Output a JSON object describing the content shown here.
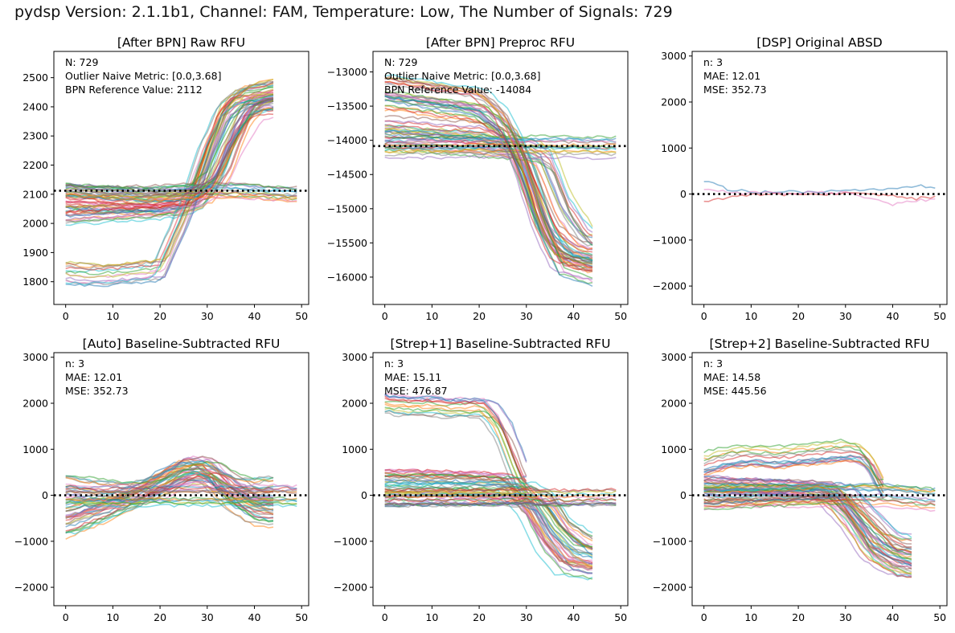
{
  "suptitle": "pydsp Version: 2.1.1b1, Channel: FAM, Temperature: Low, The Number of Signals: 729",
  "series_colors": [
    "#1f77b4",
    "#ff7f0e",
    "#2ca02c",
    "#d62728",
    "#9467bd",
    "#8c564b",
    "#e377c2",
    "#7f7f7f",
    "#bcbd22",
    "#17becf"
  ],
  "chart_data": [
    {
      "type": "line",
      "title": "[After BPN] Raw RFU",
      "annotations": [
        "N: 729",
        "Outlier Naive Metric: [0.0,3.68]",
        "BPN Reference Value: 2112"
      ],
      "xlim": [
        -2.5,
        51.5
      ],
      "ylim": [
        1722,
        2590
      ],
      "xticks": [
        0,
        10,
        20,
        30,
        40,
        50
      ],
      "yticks": [
        1800,
        1900,
        2000,
        2100,
        2200,
        2300,
        2400,
        2500
      ],
      "reference_line": 2112,
      "grid": false,
      "num_series": 729,
      "approx_series": [
        {
          "x": [
            0,
            10,
            20,
            25,
            28,
            30,
            33,
            36,
            40,
            44
          ],
          "y": [
            2070,
            2065,
            2060,
            2080,
            2140,
            2240,
            2380,
            2430,
            2440,
            2450
          ]
        },
        {
          "x": [
            0,
            10,
            20,
            26,
            30,
            34,
            38,
            41,
            44
          ],
          "y": [
            2020,
            2030,
            2040,
            2050,
            2080,
            2180,
            2350,
            2400,
            2410
          ]
        },
        {
          "x": [
            0,
            5,
            10,
            20,
            23,
            26,
            30,
            34,
            38,
            44
          ],
          "y": [
            1830,
            1820,
            1825,
            1840,
            1950,
            2060,
            2250,
            2390,
            2440,
            2460
          ]
        },
        {
          "x": [
            0,
            5,
            10,
            15,
            20,
            25,
            30,
            35,
            40,
            44,
            49
          ],
          "y": [
            2120,
            2112,
            2110,
            2108,
            2110,
            2115,
            2118,
            2120,
            2115,
            2110,
            2105
          ]
        },
        {
          "x": [
            0,
            10,
            20,
            28,
            32,
            36,
            40,
            44
          ],
          "y": [
            2100,
            2090,
            2080,
            2090,
            2140,
            2280,
            2380,
            2400
          ]
        }
      ]
    },
    {
      "type": "line",
      "title": "[After BPN] Preproc RFU",
      "annotations": [
        "N: 729",
        "Outlier Naive Metric: [0.0,3.68]",
        "BPN Reference Value: -14084"
      ],
      "xlim": [
        -2.5,
        51.5
      ],
      "ylim": [
        -16400,
        -12700
      ],
      "xticks": [
        0,
        10,
        20,
        30,
        40,
        50
      ],
      "yticks": [
        -13000,
        -13500,
        -14000,
        -14500,
        -15000,
        -15500,
        -16000
      ],
      "reference_line": -14084,
      "grid": false,
      "num_series": 729,
      "approx_series": [
        {
          "x": [
            0,
            10,
            20,
            26,
            30,
            34,
            38,
            44
          ],
          "y": [
            -13400,
            -13500,
            -13600,
            -13900,
            -14400,
            -15300,
            -15700,
            -15800
          ]
        },
        {
          "x": [
            0,
            10,
            20,
            27,
            31,
            35,
            39,
            44
          ],
          "y": [
            -13800,
            -13850,
            -13900,
            -14100,
            -14800,
            -15400,
            -15600,
            -15700
          ]
        },
        {
          "x": [
            0,
            10,
            20,
            30,
            34,
            38,
            42,
            44
          ],
          "y": [
            -14000,
            -14050,
            -14100,
            -14150,
            -14300,
            -15000,
            -15400,
            -15500
          ]
        },
        {
          "x": [
            0,
            10,
            20,
            30,
            40,
            49
          ],
          "y": [
            -14100,
            -14090,
            -14080,
            -14085,
            -14090,
            -14100
          ]
        },
        {
          "x": [
            0,
            10,
            20,
            25,
            29,
            33,
            37,
            44
          ],
          "y": [
            -13200,
            -13300,
            -13400,
            -13700,
            -14300,
            -15200,
            -15800,
            -15950
          ]
        }
      ]
    },
    {
      "type": "line",
      "title": "[DSP] Original ABSD",
      "annotations": [
        "n: 3",
        "MAE: 12.01",
        "MSE: 352.73"
      ],
      "xlim": [
        -2.5,
        51.5
      ],
      "ylim": [
        -2400,
        3100
      ],
      "xticks": [
        0,
        10,
        20,
        30,
        40,
        50
      ],
      "yticks": [
        -2000,
        -1000,
        0,
        1000,
        2000,
        3000
      ],
      "reference_line": 0,
      "grid": false,
      "num_series": 3,
      "approx_series": [
        {
          "x": [
            0,
            5,
            10,
            20,
            30,
            35,
            40,
            45,
            49
          ],
          "y": [
            300,
            100,
            50,
            40,
            60,
            80,
            120,
            180,
            150
          ]
        },
        {
          "x": [
            0,
            5,
            10,
            20,
            30,
            40,
            45,
            49
          ],
          "y": [
            -150,
            -80,
            -20,
            0,
            10,
            -50,
            -100,
            -60
          ]
        },
        {
          "x": [
            0,
            5,
            10,
            20,
            30,
            40,
            45,
            49
          ],
          "y": [
            100,
            40,
            20,
            30,
            20,
            -220,
            -150,
            -100
          ]
        }
      ]
    },
    {
      "type": "line",
      "title": "[Auto] Baseline-Subtracted RFU",
      "annotations": [
        "n: 3",
        "MAE: 12.01",
        "MSE: 352.73"
      ],
      "xlim": [
        -2.5,
        51.5
      ],
      "ylim": [
        -2400,
        3100
      ],
      "xticks": [
        0,
        10,
        20,
        30,
        40,
        50
      ],
      "yticks": [
        -2000,
        -1000,
        0,
        1000,
        2000,
        3000
      ],
      "reference_line": 0,
      "grid": false,
      "num_series": 729,
      "approx_series": [
        {
          "x": [
            0,
            5,
            10,
            15,
            20,
            25,
            30,
            35,
            40,
            44
          ],
          "y": [
            -700,
            -500,
            -300,
            -50,
            300,
            600,
            500,
            -100,
            -400,
            -450
          ]
        },
        {
          "x": [
            0,
            5,
            10,
            15,
            20,
            25,
            30,
            35,
            40,
            44
          ],
          "y": [
            -400,
            -250,
            -150,
            0,
            200,
            500,
            600,
            300,
            -100,
            -200
          ]
        },
        {
          "x": [
            0,
            5,
            10,
            15,
            20,
            25,
            30,
            35,
            40,
            44
          ],
          "y": [
            200,
            100,
            50,
            30,
            150,
            400,
            500,
            200,
            100,
            150
          ]
        },
        {
          "x": [
            0,
            10,
            20,
            30,
            40,
            49
          ],
          "y": [
            0,
            0,
            10,
            0,
            10,
            0
          ]
        }
      ]
    },
    {
      "type": "line",
      "title": "[Strep+1] Baseline-Subtracted RFU",
      "annotations": [
        "n: 3",
        "MAE: 15.11",
        "MSE: 476.87"
      ],
      "xlim": [
        -2.5,
        51.5
      ],
      "ylim": [
        -2400,
        3100
      ],
      "xticks": [
        0,
        10,
        20,
        30,
        40,
        50
      ],
      "yticks": [
        -2000,
        -1000,
        0,
        1000,
        2000,
        3000
      ],
      "reference_line": 0,
      "grid": false,
      "num_series": 729,
      "approx_series": [
        {
          "x": [
            0,
            5,
            10,
            15,
            20,
            22,
            25,
            28,
            30
          ],
          "y": [
            2020,
            1950,
            1960,
            1900,
            1920,
            1880,
            1500,
            700,
            200
          ]
        },
        {
          "x": [
            0,
            10,
            20,
            26,
            30,
            34,
            38,
            44
          ],
          "y": [
            400,
            380,
            350,
            300,
            -200,
            -1000,
            -1500,
            -1600
          ]
        },
        {
          "x": [
            0,
            10,
            20,
            28,
            32,
            36,
            40,
            44
          ],
          "y": [
            200,
            200,
            180,
            150,
            -300,
            -900,
            -1300,
            -1400
          ]
        },
        {
          "x": [
            0,
            10,
            20,
            30,
            34,
            38,
            42,
            44
          ],
          "y": [
            0,
            20,
            40,
            60,
            -100,
            -700,
            -1000,
            -1100
          ]
        },
        {
          "x": [
            0,
            10,
            20,
            30,
            40,
            49
          ],
          "y": [
            0,
            10,
            0,
            10,
            0,
            20
          ]
        }
      ]
    },
    {
      "type": "line",
      "title": "[Strep+2] Baseline-Subtracted RFU",
      "annotations": [
        "n: 3",
        "MAE: 14.58",
        "MSE: 445.56"
      ],
      "xlim": [
        -2.5,
        51.5
      ],
      "ylim": [
        -2400,
        3100
      ],
      "xticks": [
        0,
        10,
        20,
        30,
        40,
        50
      ],
      "yticks": [
        -2000,
        -1000,
        0,
        1000,
        2000,
        3000
      ],
      "reference_line": 0,
      "grid": false,
      "num_series": 729,
      "approx_series": [
        {
          "x": [
            0,
            5,
            10,
            15,
            20,
            25,
            30,
            33,
            35,
            38
          ],
          "y": [
            650,
            800,
            850,
            800,
            850,
            900,
            950,
            900,
            700,
            100
          ]
        },
        {
          "x": [
            0,
            10,
            20,
            25,
            30,
            35,
            40,
            44
          ],
          "y": [
            300,
            250,
            200,
            100,
            -400,
            -1200,
            -1500,
            -1600
          ]
        },
        {
          "x": [
            0,
            10,
            20,
            27,
            31,
            35,
            40,
            44
          ],
          "y": [
            100,
            80,
            60,
            40,
            -500,
            -1100,
            -1400,
            -1500
          ]
        },
        {
          "x": [
            0,
            10,
            20,
            30,
            40,
            49
          ],
          "y": [
            0,
            10,
            0,
            10,
            0,
            -100
          ]
        },
        {
          "x": [
            0,
            10,
            20,
            30,
            36,
            40,
            44
          ],
          "y": [
            -100,
            -50,
            0,
            50,
            -600,
            -1000,
            -1100
          ]
        }
      ]
    }
  ]
}
